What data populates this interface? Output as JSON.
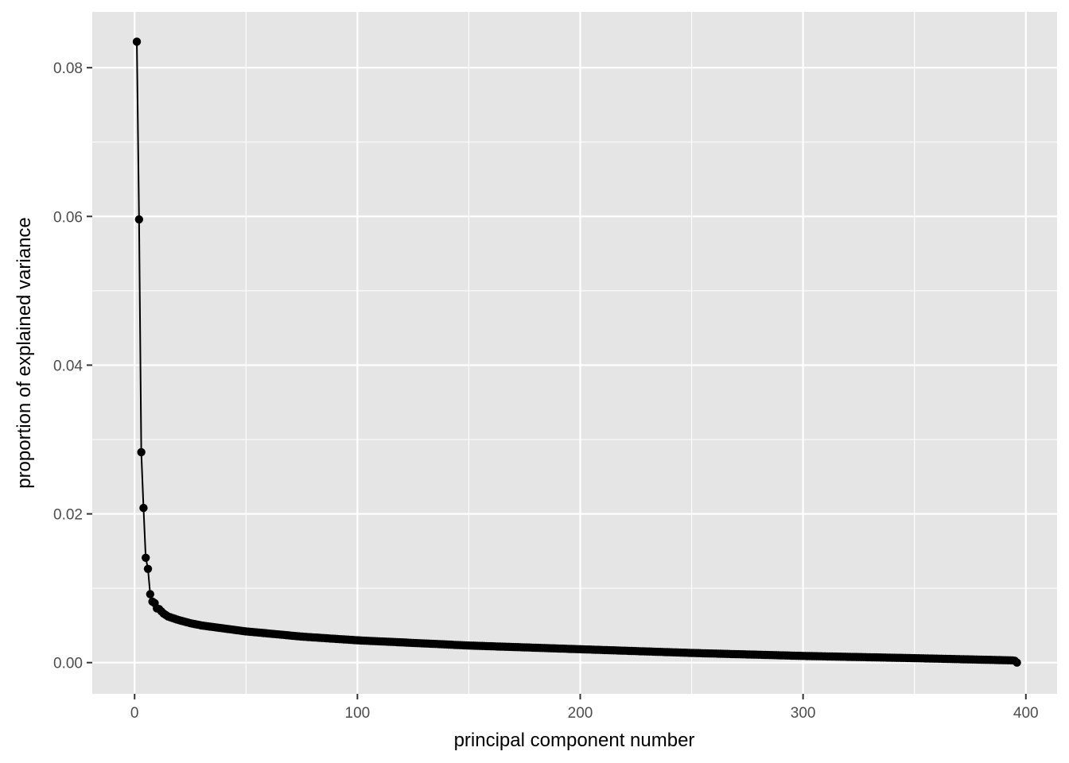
{
  "chart_data": {
    "type": "line",
    "title": "",
    "xlabel": "principal component number",
    "ylabel": "proportion of explained variance",
    "xlim": [
      -19,
      414
    ],
    "ylim": [
      -0.0042,
      0.0875
    ],
    "x_ticks": [
      0,
      100,
      200,
      300,
      400
    ],
    "x_tick_labels": [
      "0",
      "100",
      "200",
      "300",
      "400"
    ],
    "y_ticks": [
      0.0,
      0.02,
      0.04,
      0.06,
      0.08
    ],
    "y_tick_labels": [
      "0.00",
      "0.02",
      "0.04",
      "0.06",
      "0.08"
    ],
    "grid": true,
    "n_components": 396,
    "legend": "none",
    "markers": true,
    "colors": {
      "panel": "#e5e5e5",
      "grid": "#ffffff",
      "series": "#000000",
      "tick_label": "#4d4d4d"
    },
    "head_points": [
      [
        1,
        0.0835
      ],
      [
        2,
        0.0596
      ],
      [
        3,
        0.0283
      ],
      [
        4,
        0.0208
      ],
      [
        5,
        0.0141
      ],
      [
        6,
        0.0126
      ],
      [
        7,
        0.0092
      ],
      [
        8,
        0.0082
      ],
      [
        9,
        0.008
      ],
      [
        10,
        0.0073
      ],
      [
        11,
        0.0072
      ],
      [
        12,
        0.0069
      ],
      [
        13,
        0.0066
      ],
      [
        14,
        0.0064
      ],
      [
        15,
        0.0062
      ],
      [
        16,
        0.0061
      ],
      [
        17,
        0.006
      ],
      [
        18,
        0.0059
      ],
      [
        19,
        0.0058
      ],
      [
        20,
        0.0057
      ]
    ],
    "tail_anchors": [
      [
        20,
        0.0057
      ],
      [
        25,
        0.0053
      ],
      [
        30,
        0.005
      ],
      [
        40,
        0.0046
      ],
      [
        50,
        0.0042
      ],
      [
        75,
        0.0035
      ],
      [
        100,
        0.003
      ],
      [
        150,
        0.0023
      ],
      [
        200,
        0.0018
      ],
      [
        250,
        0.0013
      ],
      [
        300,
        0.0009
      ],
      [
        350,
        0.0006
      ],
      [
        394,
        0.0003
      ],
      [
        395,
        0.00025
      ],
      [
        396,
        0.0
      ]
    ]
  }
}
